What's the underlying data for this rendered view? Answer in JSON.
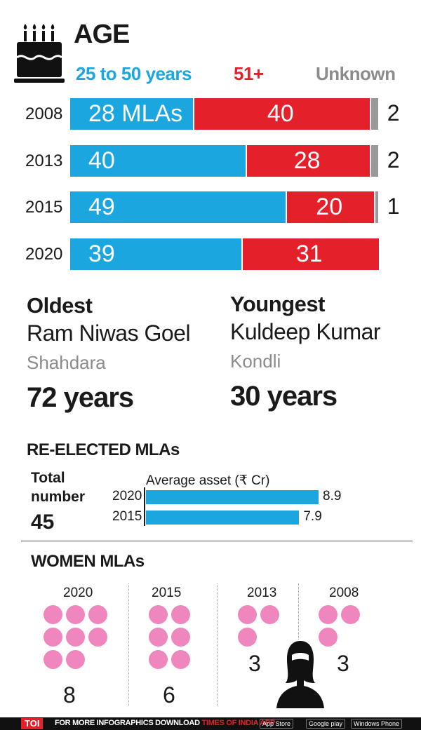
{
  "section_title": "AGE",
  "legend": {
    "young": "25 to 50 years",
    "old": "51+",
    "unknown": "Unknown"
  },
  "colors": {
    "young": "#1ba6df",
    "old": "#e4202b",
    "unknown": "#999999",
    "women": "#ef86bd"
  },
  "chart_data": [
    {
      "type": "bar",
      "stacked": true,
      "orientation": "horizontal",
      "categories": [
        "2008",
        "2013",
        "2015",
        "2020"
      ],
      "series": [
        {
          "name": "25 to 50 years",
          "values": [
            28,
            40,
            49,
            39
          ],
          "labels": [
            "28 MLAs",
            "40",
            "49",
            "39"
          ]
        },
        {
          "name": "51+",
          "values": [
            40,
            28,
            20,
            31
          ],
          "labels": [
            "40",
            "28",
            "20",
            "31"
          ]
        },
        {
          "name": "Unknown",
          "values": [
            2,
            2,
            1,
            0
          ],
          "labels": [
            "2",
            "2",
            "1",
            ""
          ]
        }
      ]
    },
    {
      "type": "bar",
      "orientation": "horizontal",
      "title": "RE-ELECTED MLAs",
      "xlabel": "Average asset (₹ Cr)",
      "categories": [
        "2020",
        "2015"
      ],
      "values": [
        8.9,
        7.9
      ],
      "labels": [
        "8.9",
        "7.9"
      ]
    },
    {
      "type": "pictogram",
      "title": "WOMEN MLAs",
      "categories": [
        "2020",
        "2015",
        "2013",
        "2008"
      ],
      "values": [
        8,
        6,
        3,
        3
      ],
      "labels": [
        "8",
        "6",
        "3",
        "3"
      ]
    }
  ],
  "oldest": {
    "title": "Oldest",
    "name": "Ram Niwas Goel",
    "constituency": "Shahdara",
    "age": "72 years"
  },
  "youngest": {
    "title": "Youngest",
    "name": "Kuldeep Kumar",
    "constituency": "Kondli",
    "age": "30 years"
  },
  "reelected": {
    "total_label_1": "Total",
    "total_label_2": "number",
    "total_value": "45"
  },
  "icons": {
    "age": "birthday-cake-icon",
    "women": "woman-silhouette-icon"
  },
  "footer": {
    "brand": "TOI",
    "text": "FOR MORE INFOGRAPHICS DOWNLOAD",
    "app": "TIMES OF INDIA APP",
    "badges": [
      "App Store",
      "Google play",
      "Windows Phone"
    ]
  }
}
